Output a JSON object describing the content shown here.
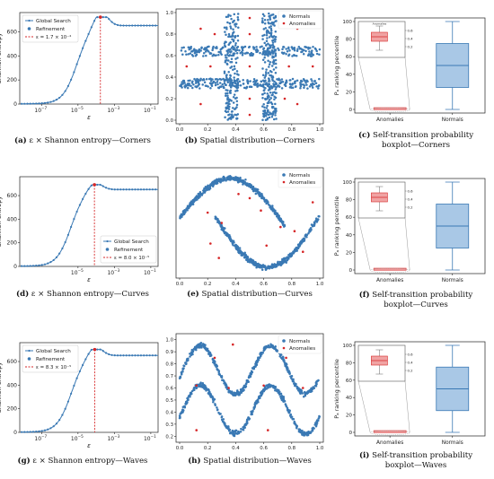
{
  "colors": {
    "blue": "#3a79b4",
    "red": "#d62728",
    "box_fill": "#a9c8e6",
    "box_red": "#f0a3a3",
    "inset_line": "#9a9a9a"
  },
  "chart_data": [
    {
      "type": "line",
      "id": "a",
      "curve": "corners",
      "xscale": "log",
      "x_ticks": [
        "10^-7",
        "10^-5",
        "10^-3",
        "10^-1"
      ],
      "xlabel": "ε",
      "y_ticks": [
        0,
        200,
        400,
        600
      ],
      "ylabel": "Shannon entropy",
      "ylim": [
        0,
        760
      ],
      "series": [
        {
          "name": "Global Search"
        },
        {
          "name": "Refinement"
        }
      ],
      "epsilon_label": "ε = 1.7 × 10⁻⁴",
      "epsilon": 0.00017,
      "plateau": 650,
      "peak": 720,
      "legend": "top-left"
    },
    {
      "type": "scatter",
      "id": "b",
      "curve": "corners",
      "x_ticks": [
        "0.0",
        "0.2",
        "0.4",
        "0.6",
        "0.8",
        "1.0"
      ],
      "y_ticks": [
        "0.0",
        "0.2",
        "0.4",
        "0.6",
        "0.8",
        "1.0"
      ],
      "series": [
        {
          "name": "Normals"
        },
        {
          "name": "Anomalies"
        }
      ],
      "legend": "top-right"
    },
    {
      "type": "box",
      "id": "c",
      "curve": "corners",
      "categories": [
        "Anomalies",
        "Normals"
      ],
      "ylabel": "Pₐ ranking percentile",
      "y_ticks": [
        0,
        20,
        40,
        60,
        80,
        100
      ],
      "normals_box": {
        "min": 0,
        "q1": 25,
        "median": 50,
        "q3": 75,
        "max": 100
      },
      "anomalies_box": {
        "min": 0,
        "q1": 0,
        "median": 0.5,
        "q3": 1,
        "max": 1.5
      },
      "inset_y_ticks": [
        "0.6",
        "0.4",
        "0.2"
      ],
      "inset_x_label": "Anomalies"
    },
    {
      "type": "line",
      "id": "d",
      "curve": "curves",
      "xscale": "log",
      "x_ticks": [
        "10^-3",
        "10^-5",
        "10^-1"
      ],
      "xlabel": "ε",
      "y_ticks": [
        0,
        200,
        400,
        600
      ],
      "ylabel": "Shannon entropy",
      "ylim": [
        0,
        760
      ],
      "series": [
        {
          "name": "Global Search"
        },
        {
          "name": "Refinement"
        }
      ],
      "epsilon_label": "ε = 8.0 × 10⁻⁵",
      "epsilon": 8e-05,
      "plateau": 650,
      "peak": 690,
      "legend": "bottom-right"
    },
    {
      "type": "scatter",
      "id": "e",
      "curve": "curves",
      "x_ticks": [
        "0.0",
        "0.2",
        "0.4",
        "0.6",
        "0.8",
        "1.0"
      ],
      "series": [
        {
          "name": "Normals"
        },
        {
          "name": "Anomalies"
        }
      ],
      "legend": "top-right"
    },
    {
      "type": "box",
      "id": "f",
      "curve": "curves",
      "categories": [
        "Anomalies",
        "Normals"
      ],
      "ylabel": "Pₐ ranking percentile",
      "y_ticks": [
        0,
        20,
        40,
        60,
        80,
        100
      ],
      "normals_box": {
        "min": 0,
        "q1": 25,
        "median": 50,
        "q3": 75,
        "max": 100
      },
      "anomalies_box": {
        "min": 0,
        "q1": 0,
        "median": 0.5,
        "q3": 1,
        "max": 1.5
      },
      "inset_y_ticks": [
        "0.6",
        "0.4",
        "0.2"
      ]
    },
    {
      "type": "line",
      "id": "g",
      "curve": "waves",
      "xscale": "log",
      "x_ticks": [
        "10^-7",
        "10^-5",
        "10^-3",
        "10^-1"
      ],
      "xlabel": "ε",
      "y_ticks": [
        0,
        200,
        400,
        600
      ],
      "ylabel": "Shannon entropy",
      "ylim": [
        0,
        760
      ],
      "series": [
        {
          "name": "Global Search"
        },
        {
          "name": "Refinement"
        }
      ],
      "epsilon_label": "ε = 8.3 × 10⁻⁵",
      "epsilon": 8.3e-05,
      "plateau": 650,
      "peak": 700,
      "legend": "top-left"
    },
    {
      "type": "scatter",
      "id": "h",
      "curve": "waves",
      "x_ticks": [
        "0.0",
        "0.2",
        "0.4",
        "0.6",
        "0.8",
        "1.0"
      ],
      "y_ticks": [
        "0.2",
        "0.3",
        "0.4",
        "0.5",
        "0.6",
        "0.7",
        "0.8",
        "0.9",
        "1.0"
      ],
      "series": [
        {
          "name": "Normals"
        },
        {
          "name": "Anomalies"
        }
      ],
      "legend": "top-right"
    },
    {
      "type": "box",
      "id": "i",
      "curve": "waves",
      "categories": [
        "Anomalies",
        "Normals"
      ],
      "ylabel": "Pₐ ranking percentile",
      "y_ticks": [
        0,
        20,
        40,
        60,
        80,
        100
      ],
      "normals_box": {
        "min": 0,
        "q1": 25,
        "median": 50,
        "q3": 75,
        "max": 100
      },
      "anomalies_box": {
        "min": 0,
        "q1": 0,
        "median": 0.5,
        "q3": 1,
        "max": 1.5
      },
      "inset_y_ticks": [
        "0.6",
        "0.4",
        "0.2"
      ]
    }
  ],
  "captions": {
    "a": {
      "label": "(a)",
      "text": " ε × Shannon entropy—Corners"
    },
    "b": {
      "label": "(b)",
      "text": " Spatial distribution—Corners"
    },
    "c": {
      "label": "(c)",
      "text": " Self-transition probability",
      "line2": "boxplot—Corners"
    },
    "d": {
      "label": "(d)",
      "text": " ε × Shannon entropy—Curves"
    },
    "e": {
      "label": "(e)",
      "text": " Spatial distribution—Curves"
    },
    "f": {
      "label": "(f)",
      "text": " Self-transition probability",
      "line2": "boxplot—Curves"
    },
    "g": {
      "label": "(g)",
      "text": " ε × Shannon entropy—Waves"
    },
    "h": {
      "label": "(h)",
      "text": " Spatial distribution—Waves"
    },
    "i": {
      "label": "(i)",
      "text": " Self-transition probability",
      "line2": "boxplot—Waves"
    }
  }
}
